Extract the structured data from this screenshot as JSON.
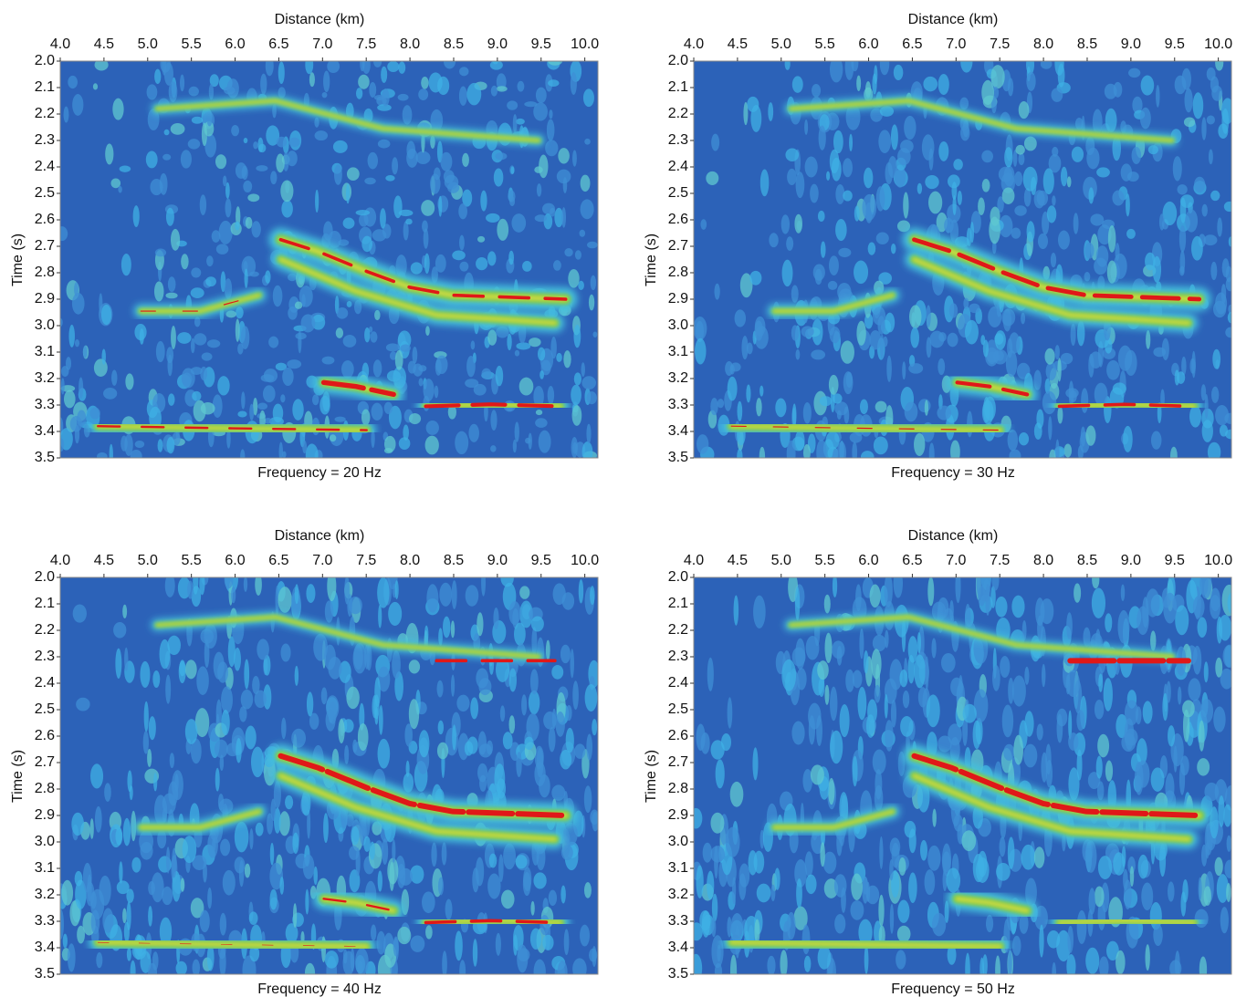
{
  "chart_data": [
    {
      "type": "heatmap",
      "title": "Frequency = 20 Hz",
      "xlabel": "Distance (km)",
      "ylabel": "Time (s)",
      "xlim": [
        4.0,
        10.15
      ],
      "ylim": [
        2.0,
        3.5
      ],
      "y_inverted": true,
      "xticks": [
        {
          "value": 4.0,
          "label": "4.0"
        },
        {
          "value": 4.5,
          "label": "4.5"
        },
        {
          "value": 5.0,
          "label": "5.0"
        },
        {
          "value": 5.5,
          "label": "5.5"
        },
        {
          "value": 6.0,
          "label": "6.0"
        },
        {
          "value": 6.5,
          "label": "6.5"
        },
        {
          "value": 7.0,
          "label": "7.0"
        },
        {
          "value": 7.5,
          "label": "7.5"
        },
        {
          "value": 8.0,
          "label": "8.0"
        },
        {
          "value": 8.5,
          "label": "8.5"
        },
        {
          "value": 9.0,
          "label": "9.0"
        },
        {
          "value": 9.5,
          "label": "9.5"
        },
        {
          "value": 10.0,
          "label": "10.0"
        }
      ],
      "yticks": [
        {
          "value": 2.0,
          "label": "2.0"
        },
        2.1,
        2.2,
        2.3,
        2.4,
        2.5,
        2.6,
        2.7,
        2.8,
        2.9,
        {
          "value": 3.0,
          "label": "3.0"
        },
        3.1,
        3.2,
        3.3,
        3.4,
        3.5
      ]
    },
    {
      "type": "heatmap",
      "title": "Frequency = 30 Hz",
      "xlabel": "Distance (km)",
      "ylabel": "Time (s)",
      "xlim": [
        4.0,
        10.15
      ],
      "ylim": [
        2.0,
        3.5
      ],
      "y_inverted": true,
      "xticks": [
        {
          "value": 4.0,
          "label": "4.0"
        },
        {
          "value": 4.5,
          "label": "4.5"
        },
        {
          "value": 5.0,
          "label": "5.0"
        },
        {
          "value": 5.5,
          "label": "5.5"
        },
        {
          "value": 6.0,
          "label": "6.0"
        },
        {
          "value": 6.5,
          "label": "6.5"
        },
        {
          "value": 7.0,
          "label": "7.0"
        },
        {
          "value": 7.5,
          "label": "7.5"
        },
        {
          "value": 8.0,
          "label": "8.0"
        },
        {
          "value": 8.5,
          "label": "8.5"
        },
        {
          "value": 9.0,
          "label": "9.0"
        },
        {
          "value": 9.5,
          "label": "9.5"
        },
        {
          "value": 10.0,
          "label": "10.0"
        }
      ],
      "yticks": [
        {
          "value": 2.0,
          "label": "2.0"
        },
        2.1,
        2.2,
        2.3,
        2.4,
        2.5,
        2.6,
        2.7,
        2.8,
        2.9,
        {
          "value": 3.0,
          "label": "3.0"
        },
        3.1,
        3.2,
        3.3,
        3.4,
        3.5
      ]
    },
    {
      "type": "heatmap",
      "title": "Frequency = 40 Hz",
      "xlabel": "Distance (km)",
      "ylabel": "Time (s)",
      "xlim": [
        4.0,
        10.15
      ],
      "ylim": [
        2.0,
        3.5
      ],
      "y_inverted": true,
      "xticks": [
        {
          "value": 4.0,
          "label": "4.0"
        },
        {
          "value": 4.5,
          "label": "4.5"
        },
        {
          "value": 5.0,
          "label": "5.0"
        },
        {
          "value": 5.5,
          "label": "5.5"
        },
        {
          "value": 6.0,
          "label": "6.0"
        },
        {
          "value": 6.5,
          "label": "6.5"
        },
        {
          "value": 7.0,
          "label": "7.0"
        },
        {
          "value": 7.5,
          "label": "7.5"
        },
        {
          "value": 8.0,
          "label": "8.0"
        },
        {
          "value": 8.5,
          "label": "8.5"
        },
        {
          "value": 9.0,
          "label": "9.0"
        },
        {
          "value": 9.5,
          "label": "9.5"
        },
        {
          "value": 10.0,
          "label": "10.0"
        }
      ],
      "yticks": [
        {
          "value": 2.0,
          "label": "2.0"
        },
        2.1,
        2.2,
        2.3,
        2.4,
        2.5,
        2.6,
        2.7,
        2.8,
        2.9,
        {
          "value": 3.0,
          "label": "3.0"
        },
        3.1,
        3.2,
        3.3,
        3.4,
        3.5
      ]
    },
    {
      "type": "heatmap",
      "title": "Frequency = 50 Hz",
      "xlabel": "Distance (km)",
      "ylabel": "Time (s)",
      "xlim": [
        4.0,
        10.15
      ],
      "ylim": [
        2.0,
        3.5
      ],
      "y_inverted": true,
      "xticks": [
        {
          "value": 4.0,
          "label": "4.0"
        },
        {
          "value": 4.5,
          "label": "4.5"
        },
        {
          "value": 5.0,
          "label": "5.0"
        },
        {
          "value": 5.5,
          "label": "5.5"
        },
        {
          "value": 6.0,
          "label": "6.0"
        },
        {
          "value": 6.5,
          "label": "6.5"
        },
        {
          "value": 7.0,
          "label": "7.0"
        },
        {
          "value": 7.5,
          "label": "7.5"
        },
        {
          "value": 8.0,
          "label": "8.0"
        },
        {
          "value": 8.5,
          "label": "8.5"
        },
        {
          "value": 9.0,
          "label": "9.0"
        },
        {
          "value": 9.5,
          "label": "9.5"
        },
        {
          "value": 10.0,
          "label": "10.0"
        }
      ],
      "yticks": [
        {
          "value": 2.0,
          "label": "2.0"
        },
        2.1,
        2.2,
        2.3,
        2.4,
        2.5,
        2.6,
        2.7,
        2.8,
        2.9,
        {
          "value": 3.0,
          "label": "3.0"
        },
        3.1,
        3.2,
        3.3,
        3.4,
        3.5
      ]
    }
  ]
}
